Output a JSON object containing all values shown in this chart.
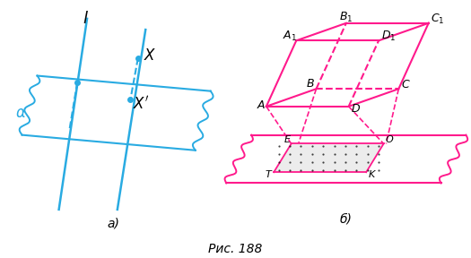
{
  "fig_width": 5.25,
  "fig_height": 2.88,
  "dpi": 100,
  "background": "#ffffff",
  "cyan": "#29abe2",
  "magenta": "#ff1a8c",
  "caption": "Рис. 188",
  "label_a": "а)",
  "label_b": "б)"
}
